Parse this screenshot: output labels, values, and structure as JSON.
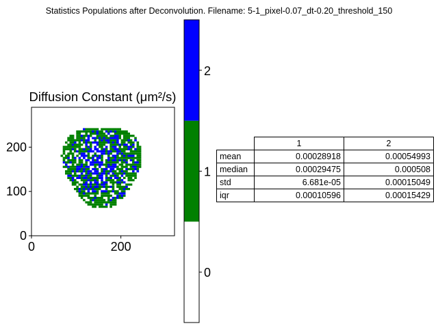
{
  "figure_title": "Statistics Populations after Deconvolution. Filename: 5-1_pixel-0.07_dt-0.20_threshold_150",
  "chart_data": [
    {
      "type": "heatmap",
      "title": "Diffusion Constant (μm²/s)",
      "xlabel": "",
      "ylabel": "",
      "xlim": [
        0,
        320
      ],
      "ylim": [
        0,
        290
      ],
      "x_ticks": [
        "0",
        "200"
      ],
      "y_ticks": [
        "0",
        "100",
        "200"
      ],
      "grid": false,
      "population_colors": {
        "0": "#ffffff",
        "1": "#008000",
        "2": "#0000ff"
      },
      "cell_shape": {
        "center": [
          155,
          158
        ],
        "radii": [
          95,
          100
        ]
      }
    },
    {
      "type": "bar",
      "title": "",
      "colorbar_ticks": [
        "0",
        "1",
        "2"
      ],
      "segments": [
        {
          "label": "0",
          "color": "#ffffff"
        },
        {
          "label": "1",
          "color": "#008000"
        },
        {
          "label": "2",
          "color": "#0000ff"
        }
      ]
    },
    {
      "type": "table",
      "columns": [
        "1",
        "2"
      ],
      "rows": [
        {
          "label": "mean",
          "values": [
            "0.00028918",
            "0.00054993"
          ]
        },
        {
          "label": "median",
          "values": [
            "0.00029475",
            "0.000508"
          ]
        },
        {
          "label": "std",
          "values": [
            "6.681e-05",
            "0.00015049"
          ]
        },
        {
          "label": "iqr",
          "values": [
            "0.00010596",
            "0.00015429"
          ]
        }
      ]
    }
  ]
}
